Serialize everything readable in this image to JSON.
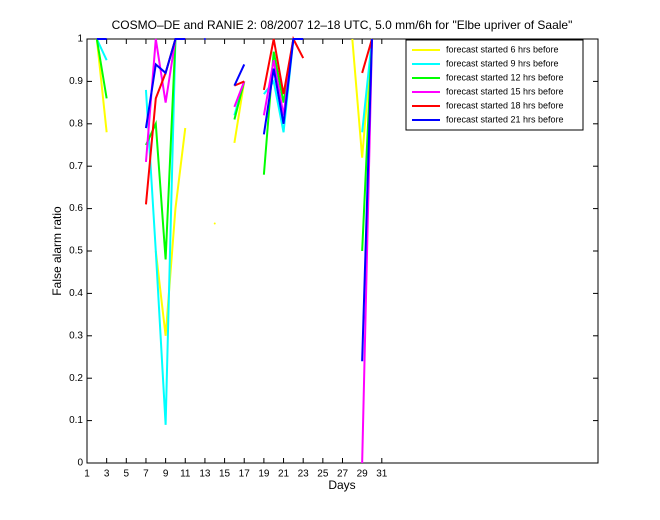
{
  "chart_data": {
    "type": "line",
    "title": "COSMO–DE and RANIE 2: 08/2007 12–18 UTC, 5.0 mm/6h for \"Elbe upriver of Saale\"",
    "xlabel": "Days",
    "ylabel": "False alarm ratio",
    "x": [
      1,
      2,
      3,
      4,
      5,
      6,
      7,
      8,
      9,
      10,
      11,
      12,
      13,
      14,
      15,
      16,
      17,
      18,
      19,
      20,
      21,
      22,
      23,
      24,
      25,
      26,
      27,
      28,
      29,
      30,
      31
    ],
    "xlim": [
      1,
      53
    ],
    "xticks": [
      1,
      3,
      5,
      7,
      9,
      11,
      13,
      15,
      17,
      19,
      21,
      23,
      25,
      27,
      29,
      31
    ],
    "ylim": [
      0,
      1
    ],
    "yticks": [
      0,
      0.1,
      0.2,
      0.3,
      0.4,
      0.5,
      0.6,
      0.7,
      0.8,
      0.9,
      1
    ],
    "legend": "upper right",
    "series": [
      {
        "name": "forecast started 6 hrs before",
        "color": "#ffff00",
        "values": [
          null,
          1,
          0.78,
          null,
          null,
          null,
          null,
          0.5,
          0.3,
          0.6,
          0.79,
          null,
          null,
          0.565,
          null,
          0.755,
          0.9,
          null,
          null,
          null,
          null,
          null,
          null,
          null,
          null,
          null,
          null,
          1,
          0.72,
          1,
          null
        ]
      },
      {
        "name": "forecast started 9 hrs before",
        "color": "#00ffff",
        "values": [
          null,
          1,
          0.95,
          null,
          null,
          null,
          0.88,
          0.5,
          0.09,
          1,
          null,
          null,
          null,
          null,
          null,
          0.82,
          0.9,
          null,
          0.87,
          0.9,
          0.78,
          1,
          null,
          null,
          null,
          null,
          null,
          null,
          0.78,
          1,
          null
        ]
      },
      {
        "name": "forecast started 12 hrs before",
        "color": "#00ff00",
        "values": [
          null,
          1,
          0.86,
          null,
          null,
          null,
          0.75,
          0.8,
          0.48,
          1,
          null,
          null,
          null,
          null,
          null,
          0.81,
          0.9,
          null,
          0.68,
          0.97,
          0.85,
          1,
          null,
          null,
          null,
          null,
          null,
          null,
          0.5,
          1,
          null
        ]
      },
      {
        "name": "forecast started 15 hrs before",
        "color": "#ff00ff",
        "values": [
          null,
          null,
          null,
          null,
          null,
          null,
          0.71,
          1,
          0.85,
          1,
          null,
          null,
          null,
          null,
          null,
          0.84,
          0.9,
          null,
          0.82,
          0.95,
          0.82,
          1,
          null,
          null,
          null,
          null,
          null,
          null,
          0,
          1,
          null
        ]
      },
      {
        "name": "forecast started 18 hrs before",
        "color": "#ff0000",
        "values": [
          null,
          null,
          null,
          null,
          null,
          null,
          0.61,
          0.86,
          0.92,
          1,
          1,
          null,
          null,
          null,
          null,
          0.89,
          0.9,
          null,
          0.88,
          1,
          0.87,
          1,
          0.955,
          null,
          null,
          null,
          null,
          null,
          0.92,
          1,
          null
        ]
      },
      {
        "name": "forecast started 21 hrs before",
        "color": "#0000ff",
        "values": [
          null,
          1,
          1,
          null,
          null,
          null,
          0.79,
          0.94,
          0.92,
          1,
          1,
          null,
          1,
          null,
          null,
          0.89,
          0.94,
          null,
          0.775,
          0.93,
          0.8,
          1,
          1,
          null,
          null,
          null,
          null,
          null,
          0.24,
          1,
          null
        ]
      }
    ]
  }
}
